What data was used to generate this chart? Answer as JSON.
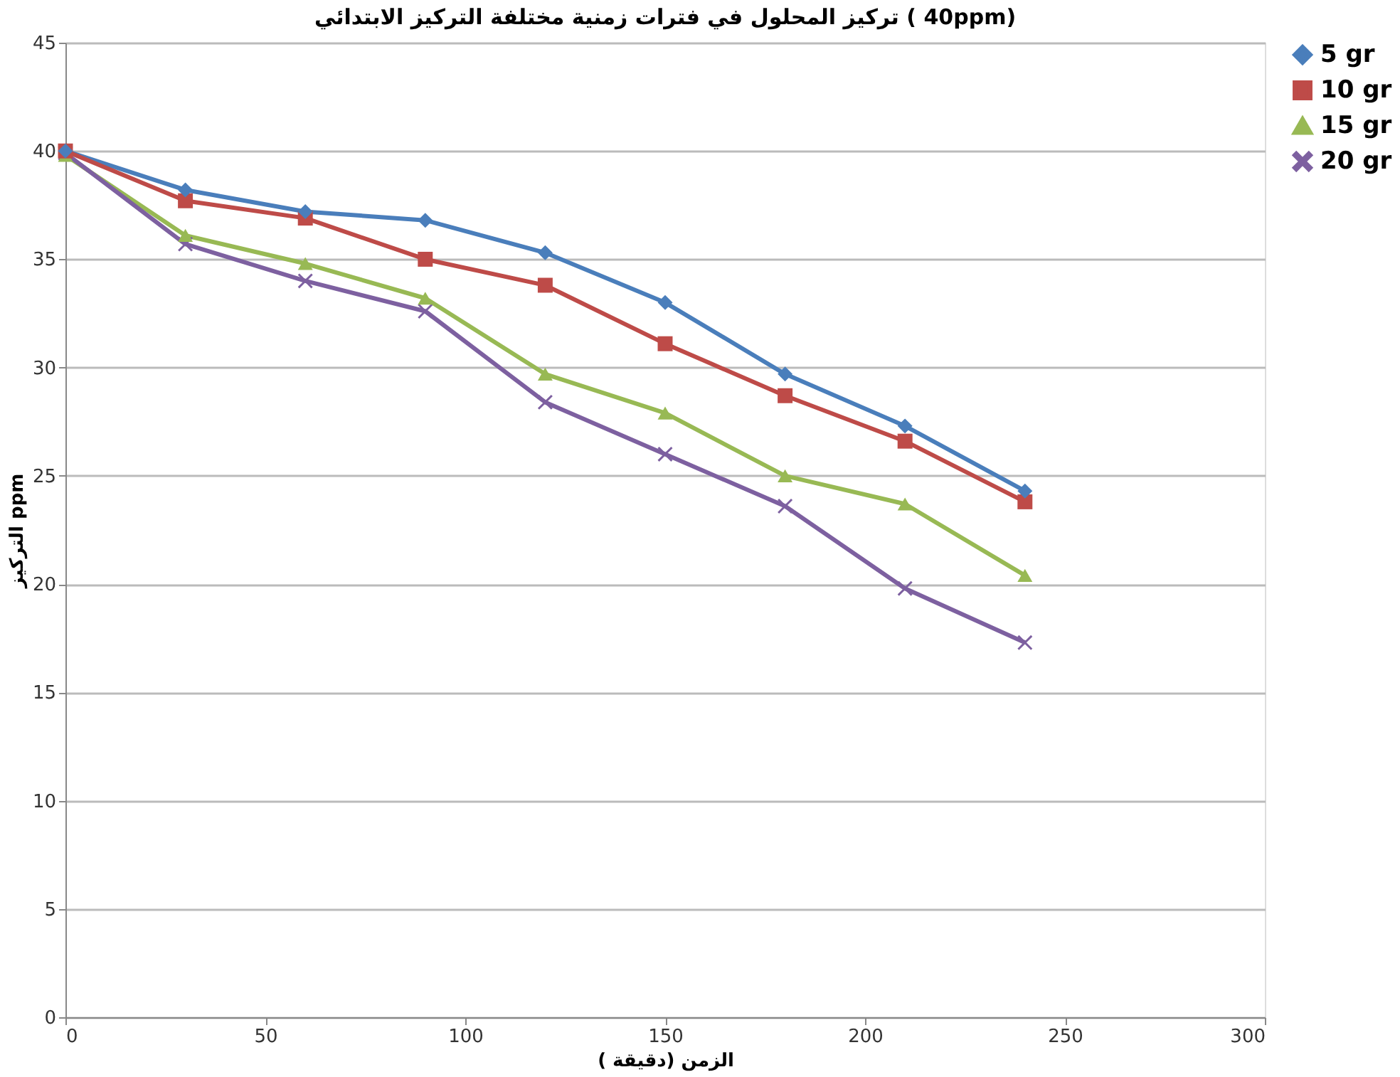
{
  "chart_data": {
    "type": "line",
    "title": "تركيز المحلول في فترات زمنية مختلفة التركيز الابتدائي ( 40ppm)",
    "xlabel": "الزمن (دقيقة )",
    "ylabel": "التركيز ppm",
    "x": [
      0,
      30,
      60,
      90,
      120,
      150,
      180,
      210,
      240
    ],
    "series": [
      {
        "name": "5 gr",
        "color": "#4a7ebb",
        "marker": "diamond",
        "values": [
          40,
          38.2,
          37.2,
          36.8,
          35.3,
          33.0,
          29.7,
          27.3,
          24.3
        ]
      },
      {
        "name": "10 gr",
        "color": "#be4b48",
        "marker": "square",
        "values": [
          40,
          37.7,
          36.9,
          35.0,
          33.8,
          31.1,
          28.7,
          26.6,
          23.8
        ]
      },
      {
        "name": "15 gr",
        "color": "#98b954",
        "marker": "triangle",
        "values": [
          39.8,
          36.1,
          34.8,
          33.2,
          29.7,
          27.9,
          25.0,
          23.7,
          20.4
        ]
      },
      {
        "name": "20 gr",
        "color": "#7d60a0",
        "marker": "cross",
        "values": [
          39.9,
          35.7,
          34.0,
          32.6,
          28.4,
          26.0,
          23.6,
          19.8,
          17.3
        ]
      }
    ],
    "xlim": [
      0,
      300
    ],
    "xticks": [
      0,
      50,
      100,
      150,
      200,
      250,
      300
    ],
    "ylim": [
      0,
      45
    ],
    "yticks": [
      0,
      5,
      10,
      15,
      20,
      25,
      30,
      35,
      40,
      45
    ],
    "grid": "y",
    "legend": "right",
    "line_style": "solid"
  }
}
